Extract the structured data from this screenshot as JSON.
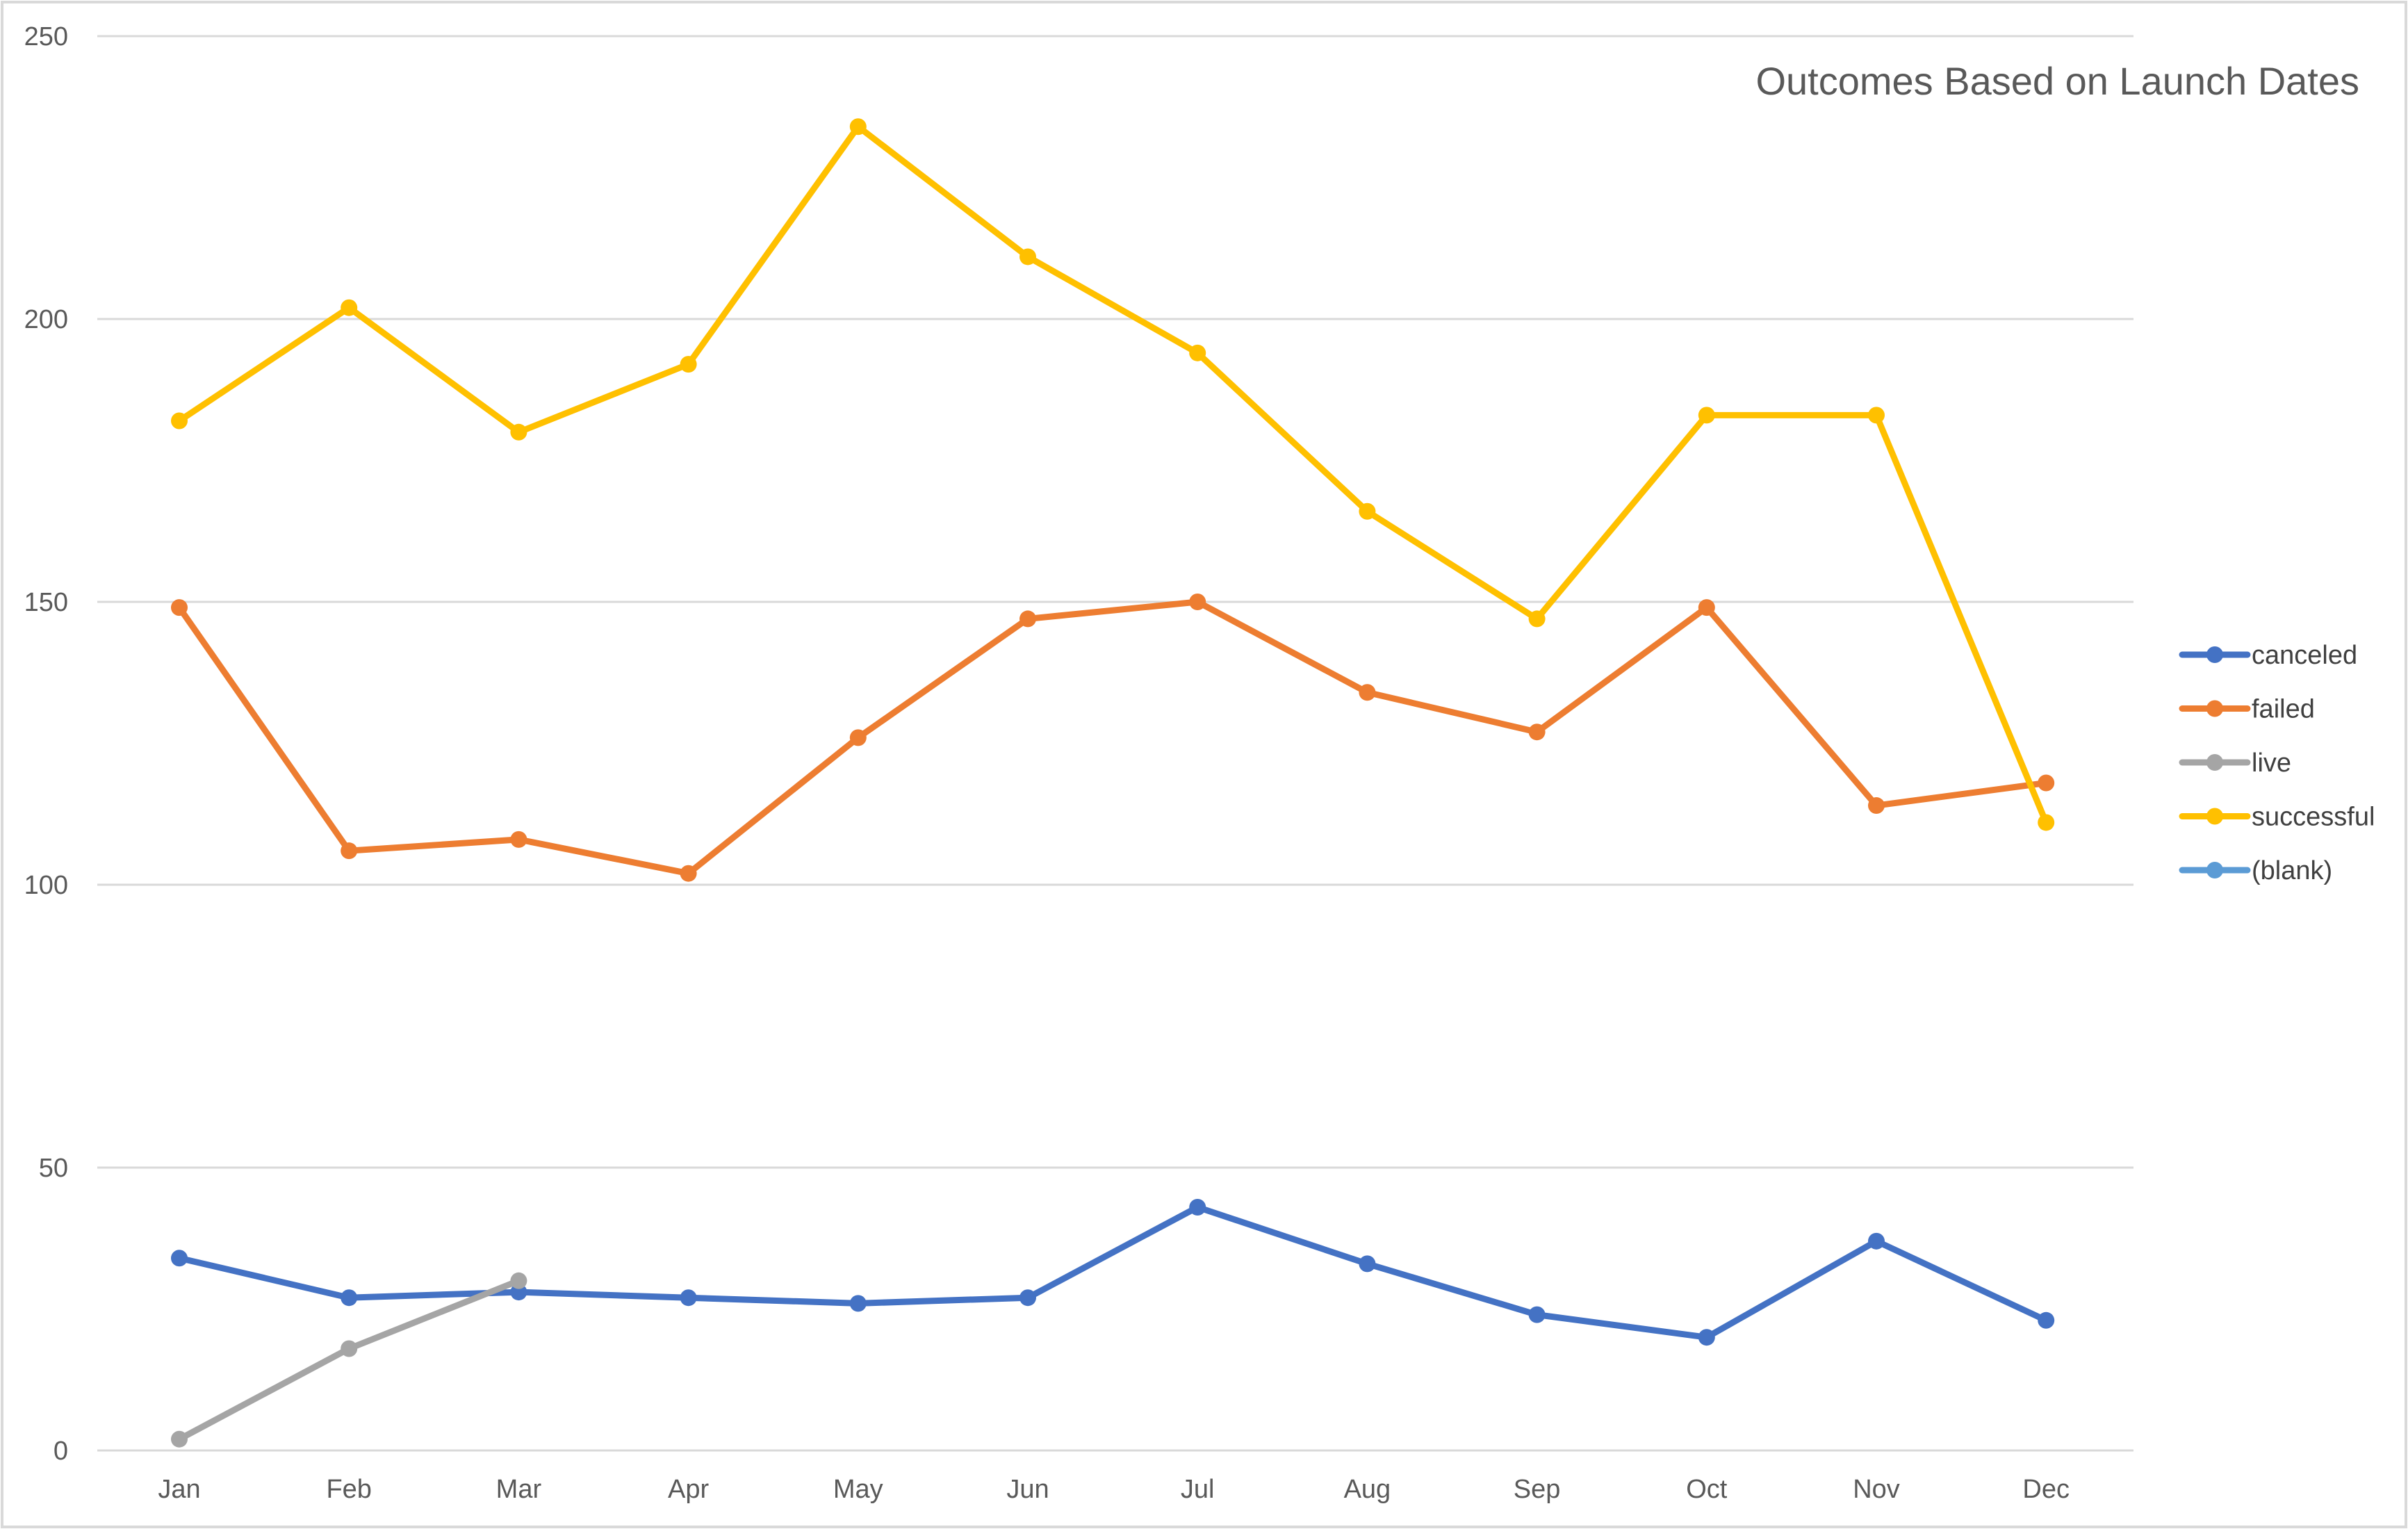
{
  "chart_data": {
    "type": "line",
    "title": "Outcomes Based on Launch Dates",
    "xlabel": "",
    "ylabel": "",
    "categories": [
      "Jan",
      "Feb",
      "Mar",
      "Apr",
      "May",
      "Jun",
      "Jul",
      "Aug",
      "Sep",
      "Oct",
      "Nov",
      "Dec"
    ],
    "ylim": [
      0,
      250
    ],
    "yticks": [
      "0",
      "50",
      "100",
      "150",
      "200",
      "250"
    ],
    "grid": true,
    "legend_position": "right",
    "series": [
      {
        "name": "canceled",
        "color": "#4472c4",
        "values": [
          34,
          27,
          28,
          27,
          26,
          27,
          43,
          33,
          24,
          20,
          37,
          23
        ]
      },
      {
        "name": "failed",
        "color": "#ed7d31",
        "values": [
          149,
          106,
          108,
          102,
          126,
          147,
          150,
          134,
          127,
          149,
          114,
          118
        ]
      },
      {
        "name": "live",
        "color": "#a5a5a5",
        "values": [
          2,
          18,
          30,
          null,
          null,
          null,
          null,
          null,
          null,
          null,
          null,
          null
        ]
      },
      {
        "name": "successful",
        "color": "#ffc000",
        "values": [
          182,
          202,
          180,
          192,
          234,
          211,
          194,
          166,
          147,
          183,
          183,
          111
        ]
      },
      {
        "name": "(blank)",
        "color": "#5b9bd5",
        "values": [
          null,
          null,
          null,
          null,
          null,
          null,
          null,
          null,
          null,
          null,
          null,
          null
        ]
      }
    ]
  }
}
